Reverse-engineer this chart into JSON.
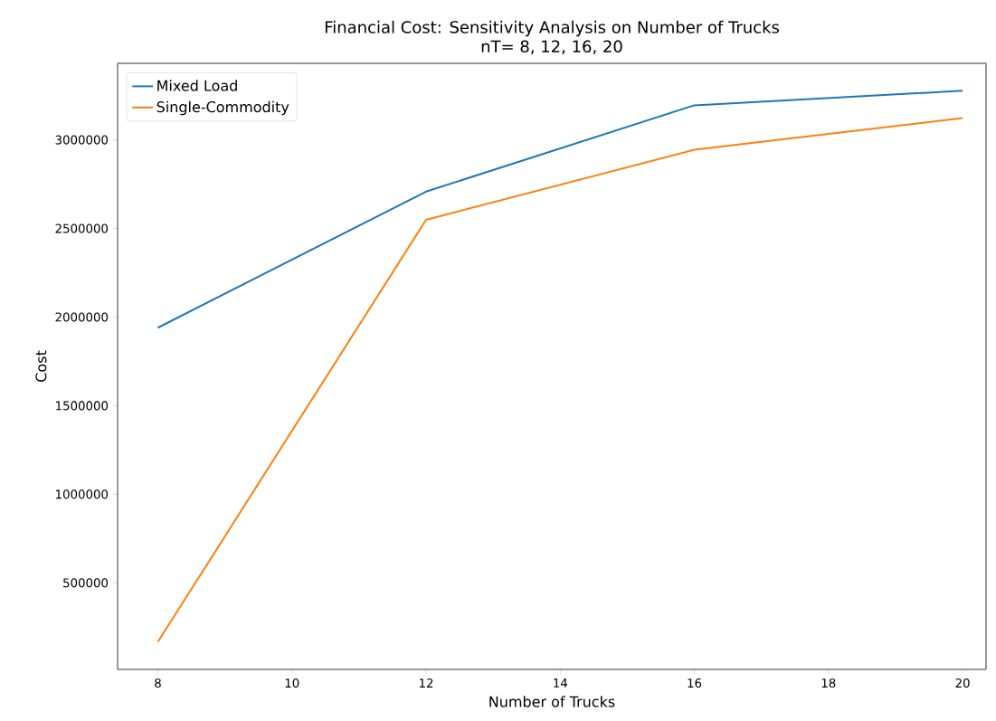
{
  "chart_data": {
    "type": "line",
    "title": "Financial Cost: Sensitivity Analysis on Number of Trucks",
    "subtitle": "nT= 8, 12, 16, 20",
    "xlabel": "Number of Trucks",
    "ylabel": "Cost",
    "x": [
      8,
      12,
      16,
      20
    ],
    "series": [
      {
        "name": "Mixed Load",
        "color": "#1f77b4",
        "values": [
          1940000,
          2708000,
          3195000,
          3277000
        ]
      },
      {
        "name": "Single-Commodity",
        "color": "#ff7f0e",
        "values": [
          167000,
          2549000,
          2944000,
          3123000
        ]
      }
    ],
    "xlim": [
      7.4,
      20.35
    ],
    "ylim": [
      11500,
      3432000
    ],
    "xticks": [
      8,
      10,
      12,
      14,
      16,
      18,
      20
    ],
    "yticks": [
      500000,
      1000000,
      1500000,
      2000000,
      2500000,
      3000000
    ],
    "grid": false,
    "legend": "top left",
    "marker": "none",
    "line_style": "solid"
  }
}
